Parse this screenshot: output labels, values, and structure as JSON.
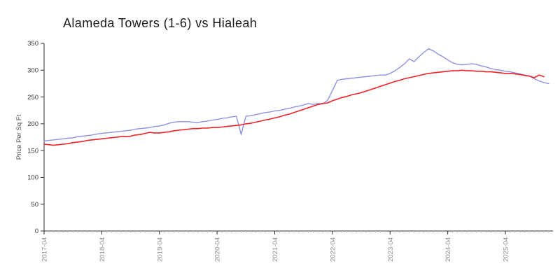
{
  "chart": {
    "title": "Alameda Towers (1-6) vs Hialeah",
    "ylabel": "Price Per Sq Ft"
  },
  "chart_data": {
    "type": "line",
    "title": "Alameda Towers (1-6) vs Hialeah",
    "xlabel": "",
    "ylabel": "Price Per Sq Ft",
    "grid": false,
    "legend_position": "none",
    "ylim": [
      0,
      350
    ],
    "y_ticks": [
      0,
      50,
      100,
      150,
      200,
      250,
      300,
      350
    ],
    "x_start": "2017-04",
    "x_interval": "monthly",
    "x_tick_every_months": 12,
    "x_tick_labels": [
      "2017-04",
      "2018-04",
      "2019-04",
      "2020-04",
      "2021-04",
      "2022-04",
      "2023-04",
      "2024-04",
      "2025-04"
    ],
    "series": [
      {
        "name": "Alameda Towers (1-6)",
        "color": "#9191e2",
        "values": [
          168,
          169,
          170,
          171,
          172,
          173,
          174,
          176,
          177,
          178,
          179,
          181,
          182,
          183,
          184,
          185,
          186,
          187,
          188,
          190,
          191,
          192,
          193,
          195,
          196,
          198,
          201,
          203,
          204,
          204,
          204,
          203,
          202,
          204,
          205,
          207,
          208,
          210,
          211,
          213,
          214,
          180,
          214,
          215,
          217,
          219,
          221,
          222,
          224,
          225,
          227,
          229,
          231,
          233,
          235,
          238,
          236,
          238,
          237,
          244,
          262,
          281,
          283,
          284,
          285,
          286,
          287,
          288,
          289,
          290,
          291,
          291,
          294,
          299,
          305,
          312,
          321,
          316,
          325,
          333,
          340,
          336,
          330,
          325,
          319,
          314,
          311,
          310,
          311,
          312,
          311,
          308,
          306,
          303,
          301,
          300,
          298,
          297,
          295,
          293,
          291,
          289,
          284,
          280,
          277,
          275
        ]
      },
      {
        "name": "Hialeah",
        "color": "#ee2224",
        "values": [
          162,
          161,
          160,
          161,
          162,
          163,
          165,
          166,
          167,
          169,
          170,
          171,
          172,
          173,
          174,
          175,
          176,
          176,
          177,
          179,
          180,
          182,
          184,
          183,
          183,
          184,
          185,
          187,
          188,
          189,
          190,
          191,
          191,
          192,
          192,
          193,
          193,
          194,
          195,
          196,
          197,
          198,
          200,
          201,
          203,
          205,
          207,
          209,
          211,
          213,
          216,
          218,
          221,
          224,
          227,
          230,
          233,
          236,
          238,
          239,
          243,
          246,
          249,
          251,
          254,
          256,
          258,
          261,
          264,
          267,
          270,
          273,
          276,
          279,
          281,
          284,
          286,
          288,
          290,
          292,
          294,
          295,
          296,
          297,
          298,
          299,
          299,
          300,
          299,
          299,
          298,
          298,
          297,
          297,
          296,
          295,
          294,
          294,
          293,
          292,
          290,
          289,
          286,
          291,
          288
        ]
      }
    ]
  }
}
